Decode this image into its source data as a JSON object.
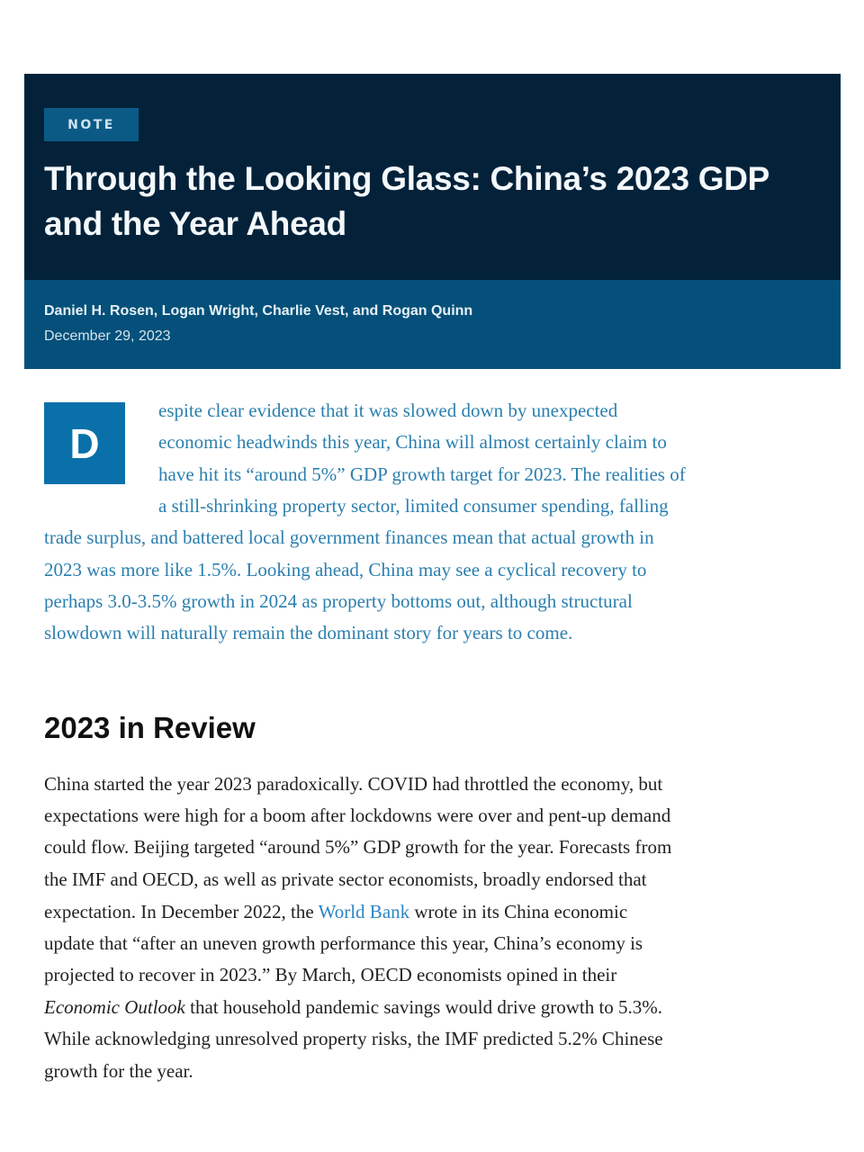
{
  "header": {
    "badge": "NOTE",
    "title_lines": [
      "Through the Looking Glass: China’s 2023 GDP",
      "and the Year Ahead"
    ],
    "authors": "Daniel H. Rosen, Logan Wright, Charlie Vest, and Rogan Quinn",
    "date": "December 29, 2023"
  },
  "lede": {
    "drop_cap": "D",
    "lines": [
      "espite clear evidence that it was slowed down by unexpected",
      "economic headwinds this year, China will almost certainly claim to",
      "have hit its “around 5%” GDP growth target for 2023. The realities of",
      "a still-shrinking property sector, limited consumer spending, falling",
      "trade surplus, and battered local government finances mean that actual growth in",
      "2023 was more like 1.5%. Looking ahead, China may see a cyclical recovery to",
      "perhaps 3.0-3.5% growth in 2024 as property bottoms out, although structural",
      "slowdown will naturally remain the dominant story for years to come."
    ]
  },
  "section": {
    "heading": "2023 in Review",
    "lines": [
      "China started the year 2023 paradoxically. COVID had throttled the economy, but",
      "expectations were high for a boom after lockdowns were over and pent-up demand",
      "could flow. Beijing targeted “around 5%” GDP growth for the year. Forecasts from",
      "the IMF and OECD, as well as private sector economists, broadly endorsed that"
    ],
    "line5_pre": "expectation. In December 2022, the ",
    "line5_link": "World Bank",
    "line5_post": " wrote in its China economic",
    "lines_b": [
      "update that “after an uneven growth performance this year, China’s economy is",
      "projected to recover in 2023.” By March, OECD economists opined in their"
    ],
    "line8_italic": "Economic Outlook",
    "line8_post": " that household pandemic savings would drive growth to 5.3%.",
    "lines_c": [
      "While acknowledging unresolved property risks, the IMF predicted 5.2% Chinese",
      "growth for the year."
    ]
  },
  "colors": {
    "header_bg": "#03223a",
    "byline_bg": "#05507a",
    "accent": "#0a70aa",
    "lede_text": "#2b7fae",
    "link": "#2a86c4"
  }
}
